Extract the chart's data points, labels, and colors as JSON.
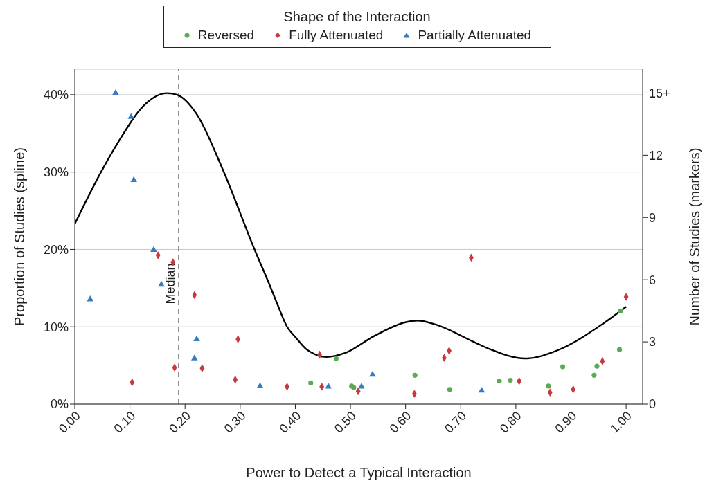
{
  "chart_data": {
    "type": "scatter",
    "xlabel": "Power to Detect a Typical Interaction",
    "ylabel": "Proportion of Studies (spline)",
    "y2label": "Number of Studies (markers)",
    "legend_title": "Shape of the Interaction",
    "legend": "top",
    "grid": "y",
    "xlim": [
      0,
      1.03
    ],
    "xticks": [
      {
        "value": 0,
        "label": "0.00"
      },
      {
        "value": 0.1,
        "label": "0.10"
      },
      {
        "value": 0.2,
        "label": "0.20"
      },
      {
        "value": 0.3,
        "label": "0.30"
      },
      {
        "value": 0.4,
        "label": "0.40"
      },
      {
        "value": 0.5,
        "label": "0.50"
      },
      {
        "value": 0.6,
        "label": "0.60"
      },
      {
        "value": 0.7,
        "label": "0.70"
      },
      {
        "value": 0.8,
        "label": "0.80"
      },
      {
        "value": 0.9,
        "label": "0.90"
      },
      {
        "value": 1,
        "label": "1.00"
      }
    ],
    "ylim": [
      0,
      43.3
    ],
    "yticks": [
      {
        "value": 0,
        "label": "0%"
      },
      {
        "value": 10,
        "label": "10%"
      },
      {
        "value": 20,
        "label": "20%"
      },
      {
        "value": 30,
        "label": "30%"
      },
      {
        "value": 40,
        "label": "40%"
      }
    ],
    "y2lim": [
      0,
      16.15
    ],
    "y2ticks": [
      0,
      3,
      6,
      9,
      12,
      {
        "value": 15,
        "label": "15+"
      }
    ],
    "ref_lines": [
      {
        "axis": "x",
        "value": 0.188,
        "label": "Median",
        "line_style": "dashed",
        "color": "#888888"
      }
    ],
    "series": [
      {
        "type": "line",
        "color": "#000000",
        "marker": "none",
        "line_style": "solid",
        "x": [
          0,
          0.046,
          0.079,
          0.128,
          0.167,
          0.185,
          0.221,
          0.268,
          0.326,
          0.354,
          0.367,
          0.385,
          0.401,
          0.42,
          0.457,
          0.49,
          0.543,
          0.601,
          0.622,
          0.654,
          0.725,
          0.753,
          0.817,
          0.877,
          0.956,
          1.0
        ],
        "values": [
          23.3,
          29.8,
          33.9,
          38.8,
          40.2,
          40.0,
          37.5,
          30.4,
          20.0,
          15.3,
          13.0,
          10.0,
          8.6,
          7.1,
          6.1,
          6.6,
          8.8,
          10.6,
          10.8,
          10.3,
          8.0,
          7.1,
          5.9,
          7.0,
          10.3,
          12.6
        ]
      },
      {
        "name": "Reversed",
        "axis": "y2",
        "color": "#5aaa55",
        "marker": "circle",
        "x": [
          0.428,
          0.474,
          0.502,
          0.506,
          0.617,
          0.68,
          0.77,
          0.79,
          0.859,
          0.885,
          0.942,
          0.947,
          0.988,
          0.99
        ],
        "values": [
          1.02,
          2.2,
          0.87,
          0.8,
          1.39,
          0.71,
          1.11,
          1.15,
          0.87,
          1.8,
          1.39,
          1.83,
          2.63,
          4.49
        ]
      },
      {
        "name": "Fully Attenuated",
        "axis": "y2",
        "color": "#c8393f",
        "marker": "diamond",
        "x": [
          0.104,
          0.151,
          0.178,
          0.181,
          0.217,
          0.231,
          0.291,
          0.296,
          0.385,
          0.444,
          0.448,
          0.514,
          0.616,
          0.67,
          0.679,
          0.719,
          0.806,
          0.862,
          0.904,
          0.957,
          1.0
        ],
        "values": [
          1.05,
          7.18,
          6.84,
          1.76,
          5.26,
          1.73,
          1.18,
          3.13,
          0.84,
          2.38,
          0.84,
          0.62,
          0.5,
          2.23,
          2.57,
          7.06,
          1.11,
          0.56,
          0.71,
          2.07,
          5.17
        ]
      },
      {
        "name": "Partially Attenuated",
        "axis": "y2",
        "color": "#3a7bbf",
        "marker": "triangle",
        "x": [
          0.028,
          0.074,
          0.102,
          0.107,
          0.143,
          0.157,
          0.217,
          0.221,
          0.336,
          0.46,
          0.52,
          0.54,
          0.738
        ],
        "values": [
          5.05,
          15.0,
          13.85,
          10.8,
          7.43,
          5.76,
          2.2,
          3.13,
          0.87,
          0.84,
          0.84,
          1.42,
          0.65
        ]
      }
    ]
  }
}
